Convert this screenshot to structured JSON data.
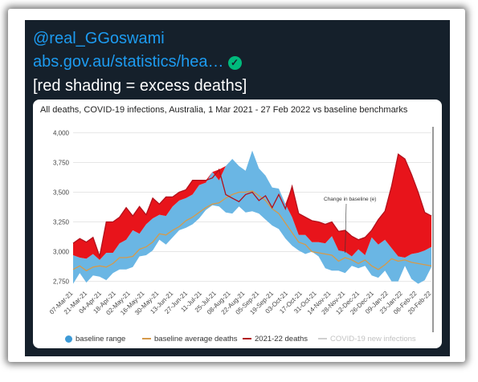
{
  "tweet": {
    "handle": "@real_GGoswami",
    "link": "abs.gov.au/statistics/hea…",
    "note": "[red shading = excess deaths]",
    "verified_icon": "check-circle-icon"
  },
  "colors": {
    "band": "#6ab6e4",
    "excess": "#e8141b",
    "average": "#d69a4a",
    "actual": "#b2111c",
    "covid": "#d0d0d0",
    "bg": "#15202b",
    "link": "#1d9bf0"
  },
  "chart_data": {
    "type": "area",
    "title": "All deaths, COVID-19 infections, Australia, 1 Mar 2021 - 27 Feb 2022 vs baseline benchmarks",
    "ylim": [
      2700,
      4050
    ],
    "yticks": [
      "4,000",
      "3,750",
      "3,500",
      "3,250",
      "3,000",
      "2,750"
    ],
    "ytick_values": [
      4000,
      3750,
      3500,
      3250,
      3000,
      2750
    ],
    "xtick_labels": [
      "07-Mar-21",
      "21-Mar-21",
      "04-Apr-21",
      "18-Apr-21",
      "02-May-21",
      "16-May-21",
      "30-May-21",
      "13-Jun-21",
      "27-Jun-21",
      "11-Jul-21",
      "25-Jul-21",
      "08-Aug-21",
      "22-Aug-21",
      "05-Sep-21",
      "19-Sep-21",
      "03-Oct-21",
      "17-Oct-21",
      "31-Oct-21",
      "14-Nov-21",
      "28-Nov-21",
      "12-Dec-21",
      "26-Dec-21",
      "09-Jan-22",
      "23-Jan-22",
      "06-Feb-22",
      "20-Feb-22"
    ],
    "grid": true,
    "legend_position": "bottom",
    "annotation": "Change in baseline (e)",
    "series": [
      {
        "name": "baseline range",
        "kind": "band",
        "low": [
          2730,
          2820,
          2740,
          2800,
          2790,
          2760,
          2820,
          2850,
          2850,
          2870,
          2960,
          2970,
          3010,
          3100,
          3060,
          3120,
          3180,
          3200,
          3230,
          3280,
          3350,
          3390,
          3380,
          3330,
          3320,
          3380,
          3330,
          3340,
          3320,
          3270,
          3220,
          3190,
          3110,
          3050,
          3010,
          2980,
          3000,
          2960,
          2860,
          2840,
          2840,
          2820,
          2880,
          2860,
          2880,
          2800,
          2780,
          2840,
          2750,
          2750,
          2880,
          2770,
          2730,
          2760,
          2870
        ],
        "high": [
          2970,
          2950,
          2940,
          2980,
          2930,
          2990,
          2990,
          3070,
          3100,
          3180,
          3150,
          3230,
          3280,
          3310,
          3300,
          3380,
          3430,
          3450,
          3480,
          3560,
          3580,
          3670,
          3600,
          3720,
          3780,
          3720,
          3680,
          3850,
          3700,
          3640,
          3540,
          3530,
          3400,
          3290,
          3140,
          3140,
          3080,
          3080,
          3070,
          3130,
          3010,
          3000,
          2960,
          3020,
          2970,
          3120,
          3060,
          3100,
          3030,
          2960,
          2950,
          2980,
          2990,
          3010,
          3040
        ]
      },
      {
        "name": "baseline average deaths",
        "kind": "line",
        "values": [
          2850,
          2880,
          2840,
          2870,
          2880,
          2870,
          2900,
          2950,
          2950,
          2960,
          3020,
          3040,
          3080,
          3150,
          3140,
          3180,
          3210,
          3260,
          3290,
          3330,
          3370,
          3400,
          3410,
          3450,
          3480,
          3500,
          3500,
          3510,
          3470,
          3430,
          3360,
          3320,
          3240,
          3160,
          3080,
          3060,
          3000,
          2990,
          2980,
          2970,
          2920,
          2950,
          2930,
          2900,
          2930,
          2880,
          2850,
          2890,
          2940,
          2920,
          2930,
          2910,
          2900,
          2890,
          2880
        ]
      },
      {
        "name": "2021-22 deaths",
        "kind": "line",
        "values": [
          3070,
          3110,
          3080,
          3120,
          2960,
          3250,
          3250,
          3290,
          3370,
          3300,
          3380,
          3310,
          3450,
          3400,
          3460,
          3460,
          3500,
          3520,
          3600,
          3600,
          3600,
          3620,
          3690,
          3480,
          3450,
          3420,
          3480,
          3500,
          3430,
          3470,
          3370,
          3480,
          3360,
          3550,
          3320,
          3290,
          3260,
          3250,
          3230,
          3250,
          3170,
          3180,
          3130,
          3100,
          3120,
          3180,
          3270,
          3340,
          3550,
          3820,
          3780,
          3650,
          3500,
          3330,
          3300
        ]
      },
      {
        "name": "COVID-19 new infections",
        "kind": "line",
        "values": []
      }
    ]
  }
}
